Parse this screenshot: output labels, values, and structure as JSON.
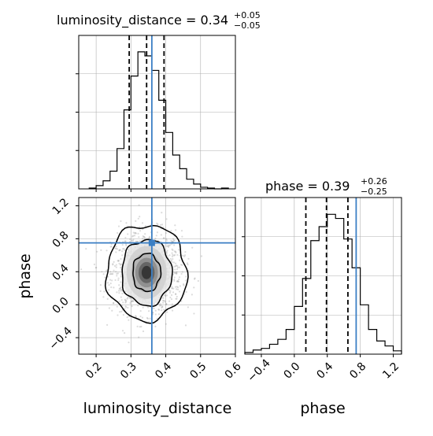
{
  "chart_data": [
    {
      "type": "histogram",
      "panel": "luminosity_distance marginal",
      "title_text": "luminosity_distance = 0.34",
      "title_sup": "+0.05",
      "title_sub": "−0.05",
      "xlim": [
        0.15,
        0.6
      ],
      "bins": [
        0.18,
        0.2,
        0.22,
        0.24,
        0.26,
        0.28,
        0.3,
        0.32,
        0.34,
        0.36,
        0.38,
        0.4,
        0.42,
        0.44,
        0.46,
        0.48,
        0.5,
        0.52,
        0.54,
        0.56,
        0.58
      ],
      "counts": [
        1,
        4,
        10,
        22,
        50,
        98,
        140,
        170,
        165,
        147,
        110,
        70,
        42,
        25,
        12,
        6,
        2,
        1,
        0,
        1
      ],
      "quantiles": [
        0.295,
        0.345,
        0.395
      ],
      "truth": 0.36,
      "grid": true
    },
    {
      "type": "histogram",
      "panel": "phase marginal",
      "title_text": "phase = 0.39",
      "title_sup": "+0.26",
      "title_sub": "−0.25",
      "xlim": [
        -0.6,
        1.3
      ],
      "bins": [
        -0.6,
        -0.5,
        -0.4,
        -0.3,
        -0.2,
        -0.1,
        0.0,
        0.1,
        0.2,
        0.3,
        0.4,
        0.5,
        0.6,
        0.7,
        0.8,
        0.9,
        1.0,
        1.1,
        1.2,
        1.3
      ],
      "counts": [
        2,
        5,
        7,
        12,
        18,
        30,
        58,
        92,
        138,
        155,
        170,
        165,
        140,
        105,
        60,
        30,
        16,
        10,
        4
      ],
      "quantiles": [
        0.14,
        0.39,
        0.65
      ],
      "truth": 0.75,
      "xticks": [
        "−0.4",
        "0.0",
        "0.4",
        "0.8",
        "1.2"
      ],
      "xtick_values": [
        -0.4,
        0.0,
        0.4,
        0.8,
        1.2
      ],
      "xlabel": "phase",
      "grid": true
    },
    {
      "type": "scatter",
      "panel": "joint",
      "xlim": [
        0.15,
        0.6
      ],
      "ylim": [
        -0.6,
        1.3
      ],
      "xticks": [
        "0.2",
        "0.3",
        "0.4",
        "0.5",
        "0.6"
      ],
      "xtick_values": [
        0.2,
        0.3,
        0.4,
        0.5,
        0.6
      ],
      "yticks": [
        "−0.4",
        "0.0",
        "0.4",
        "0.8",
        "1.2"
      ],
      "ytick_values": [
        -0.4,
        0.0,
        0.4,
        0.8,
        1.2
      ],
      "xlabel": "luminosity_distance",
      "ylabel": "phase",
      "center": [
        0.345,
        0.39
      ],
      "spread": [
        0.05,
        0.25
      ],
      "contours": [
        {
          "level": "outer",
          "rx": 0.115,
          "ry": 0.58
        },
        {
          "level": "mid",
          "rx": 0.072,
          "ry": 0.4
        },
        {
          "level": "inner",
          "rx": 0.04,
          "ry": 0.23
        }
      ],
      "truth": [
        0.36,
        0.75
      ],
      "grid": true
    }
  ],
  "colors": {
    "truth": "#3b7fc4",
    "line": "#000000",
    "grid": "#b0b0b0",
    "points": "#9a9a9a"
  }
}
